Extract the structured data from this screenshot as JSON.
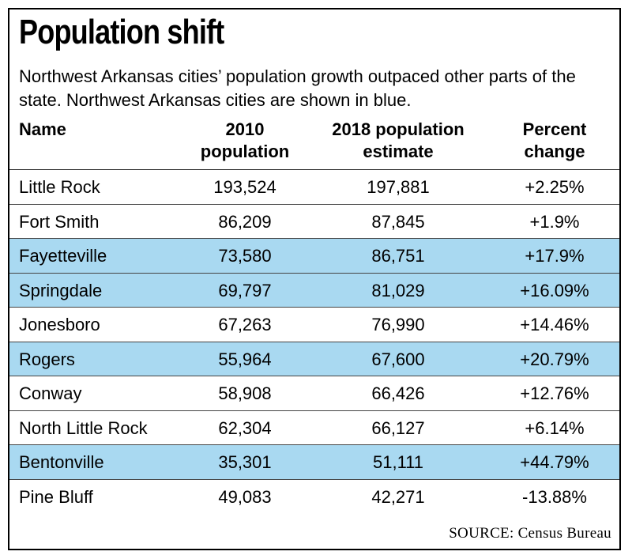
{
  "title": "Population shift",
  "subtitle": "Northwest Arkansas cities’ population growth outpaced other parts of the state. Northwest Arkansas cities are shown in blue.",
  "colors": {
    "highlight": "#a9d9f1",
    "border": "#000000"
  },
  "headers": {
    "name": "Name",
    "pop2010_line1": "2010",
    "pop2010_line2": "population",
    "pop2018_line1": "2018 population",
    "pop2018_line2": "estimate",
    "pct_line1": "Percent",
    "pct_line2": "change"
  },
  "chart_data": {
    "type": "table",
    "title": "Population shift",
    "columns": [
      "Name",
      "2010 population",
      "2018 population estimate",
      "Percent change"
    ],
    "rows": [
      {
        "name": "Little Rock",
        "pop2010": "193,524",
        "pop2018": "197,881",
        "pct": "+2.25%",
        "highlight": false
      },
      {
        "name": "Fort Smith",
        "pop2010": "86,209",
        "pop2018": "87,845",
        "pct": "+1.9%",
        "highlight": false
      },
      {
        "name": "Fayetteville",
        "pop2010": "73,580",
        "pop2018": "86,751",
        "pct": "+17.9%",
        "highlight": true
      },
      {
        "name": "Springdale",
        "pop2010": "69,797",
        "pop2018": "81,029",
        "pct": "+16.09%",
        "highlight": true
      },
      {
        "name": "Jonesboro",
        "pop2010": "67,263",
        "pop2018": "76,990",
        "pct": "+14.46%",
        "highlight": false
      },
      {
        "name": "Rogers",
        "pop2010": "55,964",
        "pop2018": "67,600",
        "pct": "+20.79%",
        "highlight": true
      },
      {
        "name": "Conway",
        "pop2010": "58,908",
        "pop2018": "66,426",
        "pct": "+12.76%",
        "highlight": false
      },
      {
        "name": "North Little Rock",
        "pop2010": "62,304",
        "pop2018": "66,127",
        "pct": "+6.14%",
        "highlight": false
      },
      {
        "name": "Bentonville",
        "pop2010": "35,301",
        "pop2018": "51,111",
        "pct": "+44.79%",
        "highlight": true
      },
      {
        "name": "Pine Bluff",
        "pop2010": "49,083",
        "pop2018": "42,271",
        "pct": "-13.88%",
        "highlight": false
      }
    ]
  },
  "source": "SOURCE: Census Bureau"
}
